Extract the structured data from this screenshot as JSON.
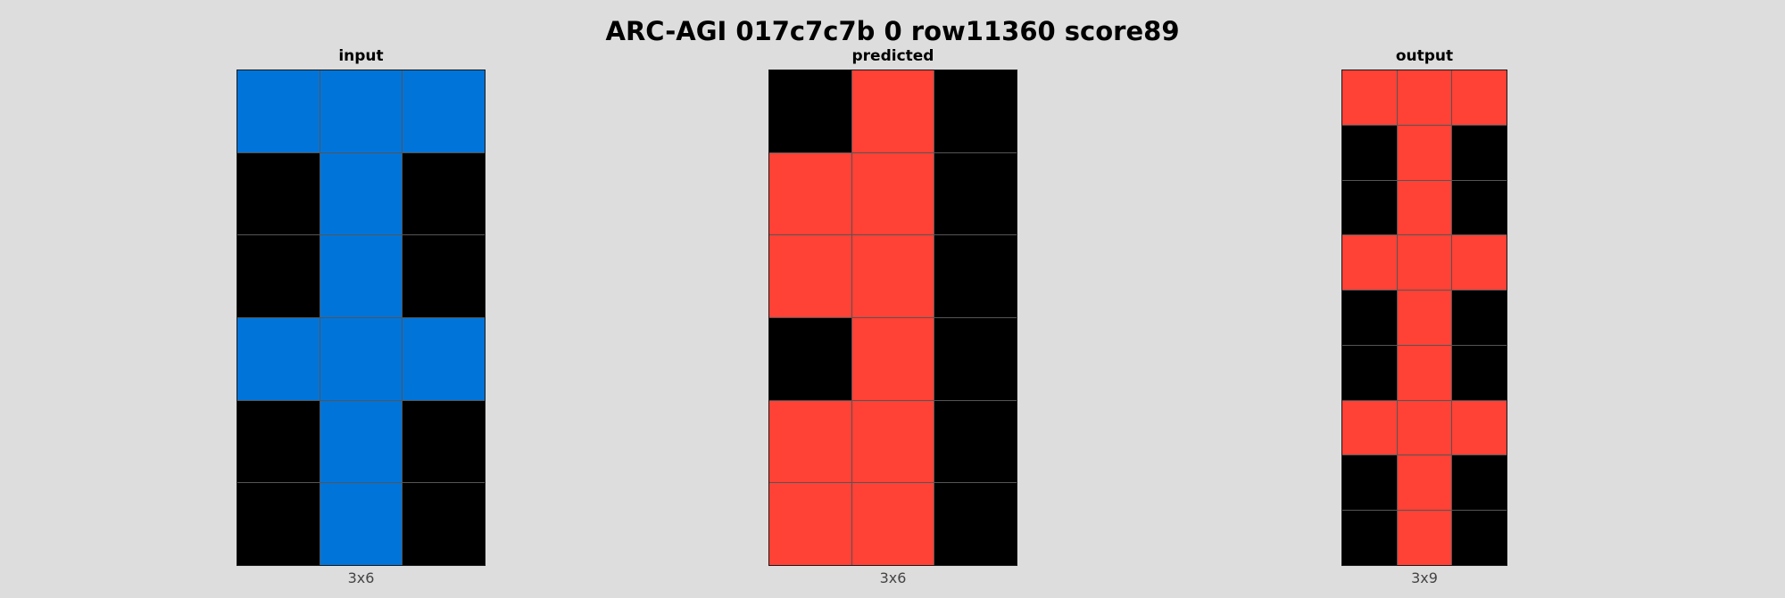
{
  "title": "ARC-AGI 017c7c7b 0 row11360 score89",
  "palette": {
    "0": "#000000",
    "1": "#0074d9",
    "2": "#ff4136"
  },
  "panels": {
    "input": {
      "label": "input",
      "size_label": "3x6",
      "grid": [
        [
          1,
          1,
          1
        ],
        [
          0,
          1,
          0
        ],
        [
          0,
          1,
          0
        ],
        [
          1,
          1,
          1
        ],
        [
          0,
          1,
          0
        ],
        [
          0,
          1,
          0
        ]
      ]
    },
    "predicted": {
      "label": "predicted",
      "size_label": "3x6",
      "grid": [
        [
          0,
          2,
          0
        ],
        [
          2,
          2,
          0
        ],
        [
          2,
          2,
          0
        ],
        [
          0,
          2,
          0
        ],
        [
          2,
          2,
          0
        ],
        [
          2,
          2,
          0
        ]
      ]
    },
    "output": {
      "label": "output",
      "size_label": "3x9",
      "grid": [
        [
          2,
          2,
          2
        ],
        [
          0,
          2,
          0
        ],
        [
          0,
          2,
          0
        ],
        [
          2,
          2,
          2
        ],
        [
          0,
          2,
          0
        ],
        [
          0,
          2,
          0
        ],
        [
          2,
          2,
          2
        ],
        [
          0,
          2,
          0
        ],
        [
          0,
          2,
          0
        ]
      ]
    }
  }
}
